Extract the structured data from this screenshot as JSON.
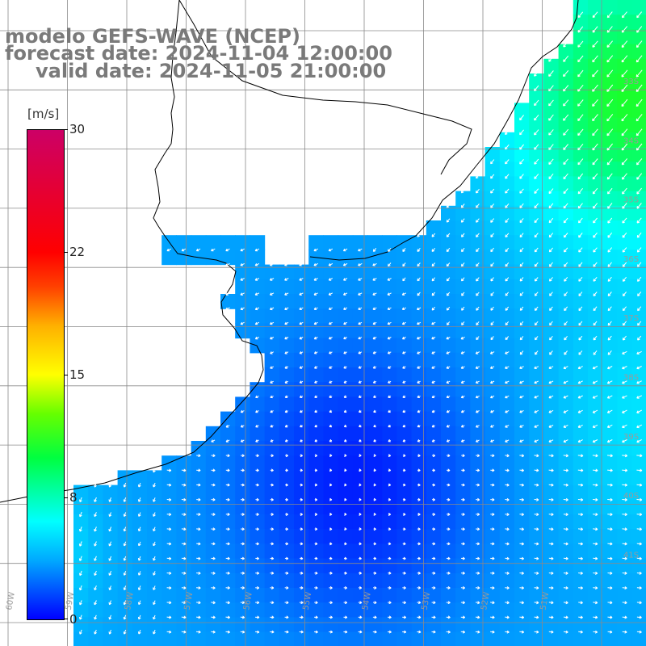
{
  "header": {
    "line1": "modelo GEFS-WAVE (NCEP)",
    "line2": "forecast date: 2024-11-04 12:00:00",
    "line3": "valid date: 2024-11-05 21:00:00"
  },
  "colorbar": {
    "unit": "[m/s]",
    "ticks": [
      "30",
      "22",
      "15",
      "8",
      "0"
    ],
    "colors": [
      "#0000ff",
      "#00a8ff",
      "#00ffff",
      "#00ff40",
      "#ffff00",
      "#ff4000",
      "#ff0000",
      "#cc0066"
    ]
  },
  "map": {
    "lon_labels": [
      "60W",
      "59W",
      "58W",
      "57W",
      "56W",
      "55W",
      "54W",
      "53W",
      "52W",
      "51W"
    ],
    "lat_labels": [
      "33S",
      "34S",
      "35S",
      "36S",
      "37S",
      "38S",
      "39S",
      "40S",
      "41S"
    ]
  }
}
